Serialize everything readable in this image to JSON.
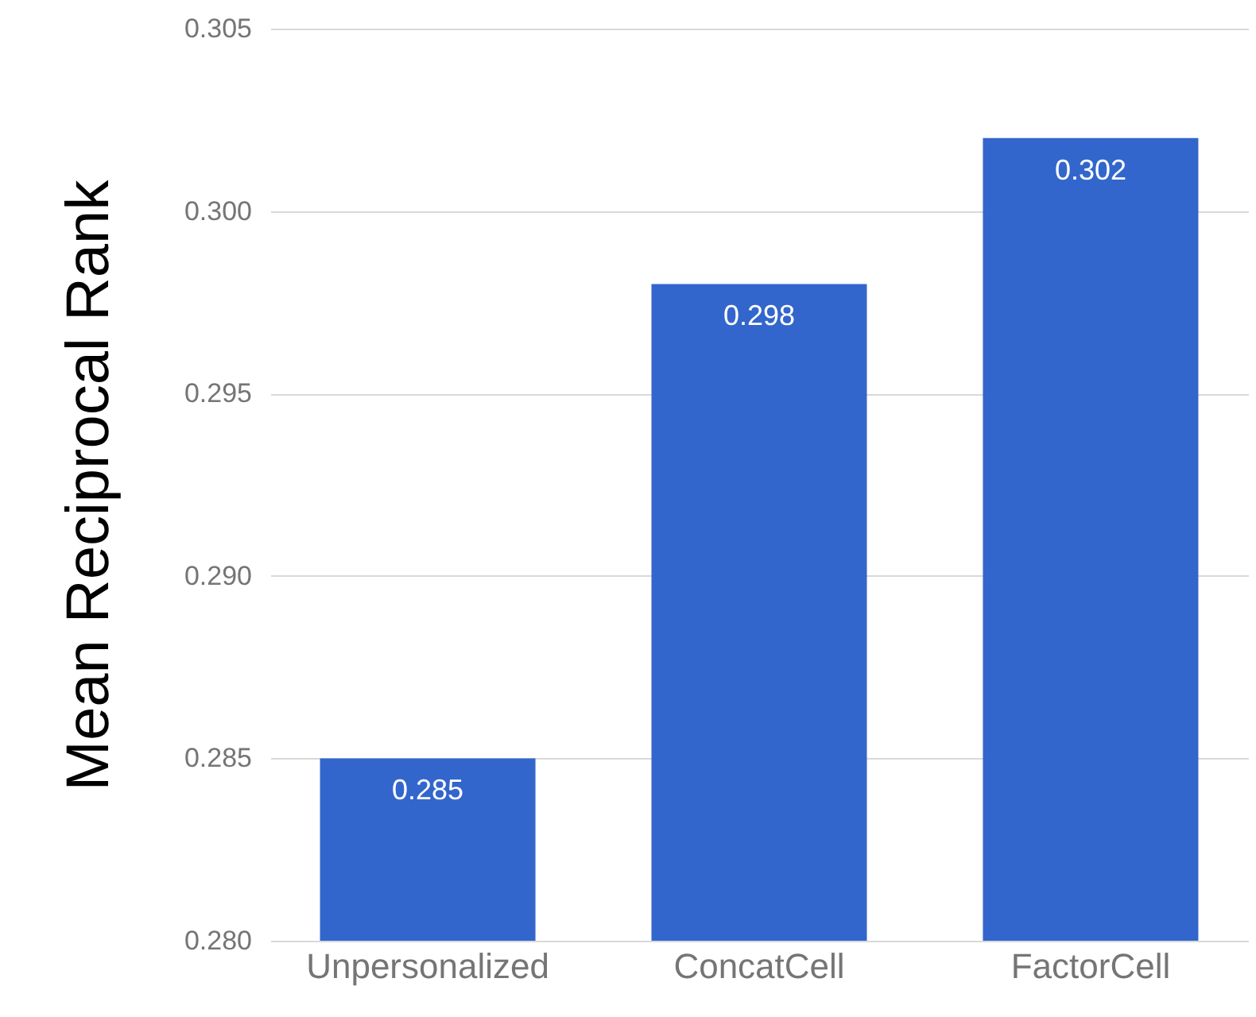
{
  "chart_data": {
    "type": "bar",
    "ylabel": "Mean Reciprocal Rank",
    "categories": [
      "Unpersonalized",
      "ConcatCell",
      "FactorCell"
    ],
    "values": [
      0.285,
      0.298,
      0.302
    ],
    "color": "#3366cc",
    "ylim": [
      0.28,
      0.305
    ],
    "yticks": [
      {
        "value": 0.28,
        "label": "0.280"
      },
      0.285,
      {
        "value": 0.29,
        "label": "0.290"
      },
      0.295,
      {
        "value": 0.3,
        "label": "0.300"
      },
      0.305
    ],
    "grid": "y",
    "data_labels": true
  }
}
